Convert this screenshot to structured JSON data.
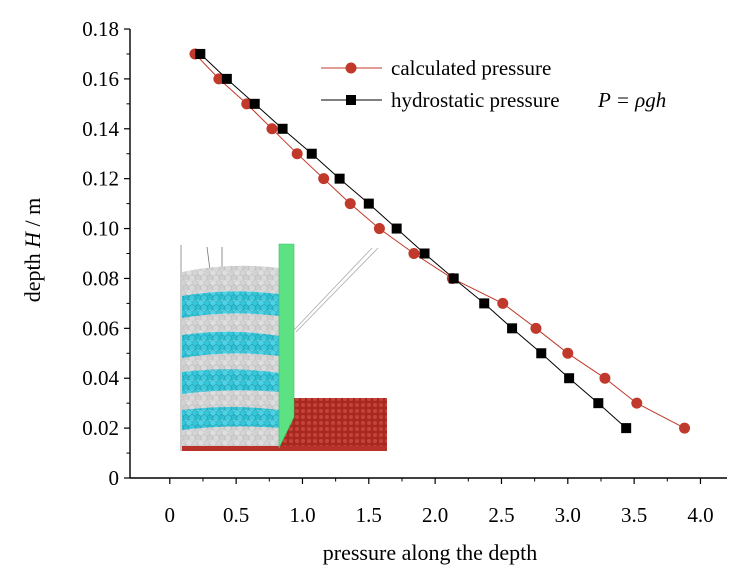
{
  "chart_data": {
    "type": "line",
    "title": "",
    "xlabel": "pressure along the depth",
    "ylabel_prefix": "depth ",
    "ylabel_var": "H",
    "ylabel_suffix": " / m",
    "xlim": [
      -0.3,
      4.2
    ],
    "ylim": [
      0,
      0.18
    ],
    "xticks": [
      0,
      0.5,
      1.0,
      1.5,
      2.0,
      2.5,
      3.0,
      3.5,
      4.0
    ],
    "xtick_labels": [
      "0",
      "0.5",
      "1.0",
      "1.5",
      "2.0",
      "2.5",
      "3.0",
      "3.5",
      "4.0"
    ],
    "yticks": [
      0,
      0.02,
      0.04,
      0.06,
      0.08,
      0.1,
      0.12,
      0.14,
      0.16,
      0.18
    ],
    "ytick_labels": [
      "0",
      "0.02",
      "0.04",
      "0.06",
      "0.08",
      "0.10",
      "0.12",
      "0.14",
      "0.16",
      "0.18"
    ],
    "legend_position": "top-right",
    "series": [
      {
        "name": "calculated pressure",
        "color": "#c0392b",
        "marker": "circle",
        "x": [
          0.19,
          0.37,
          0.58,
          0.77,
          0.96,
          1.16,
          1.36,
          1.58,
          1.84,
          2.13,
          2.51,
          2.76,
          3.0,
          3.28,
          3.52,
          3.88
        ],
        "y": [
          0.17,
          0.16,
          0.15,
          0.14,
          0.13,
          0.12,
          0.11,
          0.1,
          0.09,
          0.08,
          0.07,
          0.06,
          0.05,
          0.04,
          0.03,
          0.02
        ]
      },
      {
        "name": "hydrostatic pressure",
        "legend_formula": "P = ρgh",
        "color": "#000000",
        "marker": "square",
        "x": [
          0.23,
          0.43,
          0.64,
          0.85,
          1.07,
          1.28,
          1.5,
          1.71,
          1.92,
          2.14,
          2.37,
          2.58,
          2.8,
          3.01,
          3.23,
          3.44
        ],
        "y": [
          0.17,
          0.16,
          0.15,
          0.14,
          0.13,
          0.12,
          0.11,
          0.1,
          0.09,
          0.08,
          0.07,
          0.06,
          0.05,
          0.04,
          0.03,
          0.02
        ]
      }
    ]
  },
  "inset": {
    "description_name": "granular-simulation-inset",
    "particle_colors": [
      "#d9d9d9",
      "#35c8dc"
    ],
    "wall_color": "#55e07a",
    "base_color": "#b8322a"
  }
}
